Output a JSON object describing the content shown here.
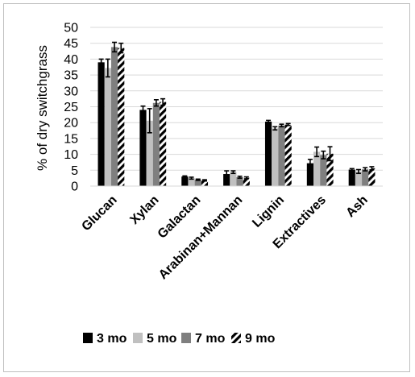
{
  "chart_data": {
    "type": "bar",
    "title": "",
    "xlabel": "",
    "ylabel": "% of dry switchgrass",
    "ylim": [
      0,
      50
    ],
    "yticks": [
      0,
      5,
      10,
      15,
      20,
      25,
      30,
      35,
      40,
      45,
      50
    ],
    "grid": true,
    "legend_position": "bottom",
    "categories": [
      "Glucan",
      "Xylan",
      "Galactan",
      "Arabinan+Mannan",
      "Lignin",
      "Extractives",
      "Ash"
    ],
    "series": [
      {
        "name": "3 mo",
        "color": "#000000",
        "pattern": "solid",
        "values": [
          39,
          24,
          3,
          3.8,
          20.3,
          7.2,
          5.2
        ],
        "errors": [
          1.0,
          1.2,
          0.2,
          1.0,
          0.4,
          1.2,
          0.3
        ]
      },
      {
        "name": "5 mo",
        "color": "#c0c0c0",
        "pattern": "solid",
        "values": [
          37.2,
          20.6,
          2.5,
          4.4,
          18.2,
          10.8,
          4.6
        ],
        "errors": [
          2.8,
          3.8,
          0.3,
          0.4,
          0.5,
          1.5,
          0.6
        ]
      },
      {
        "name": "7 mo",
        "color": "#7f7f7f",
        "pattern": "solid",
        "values": [
          43.8,
          26.2,
          2.0,
          2.8,
          19.1,
          9.8,
          5.3
        ],
        "errors": [
          1.5,
          1.0,
          0.2,
          0.3,
          0.4,
          1.2,
          0.5
        ]
      },
      {
        "name": "9 mo",
        "color": "#000000",
        "pattern": "diagonal-stripes",
        "values": [
          43.5,
          26.5,
          1.8,
          2.6,
          19.4,
          10.2,
          5.6
        ],
        "errors": [
          1.5,
          1.0,
          0.2,
          0.3,
          0.3,
          2.2,
          0.5
        ]
      }
    ]
  }
}
